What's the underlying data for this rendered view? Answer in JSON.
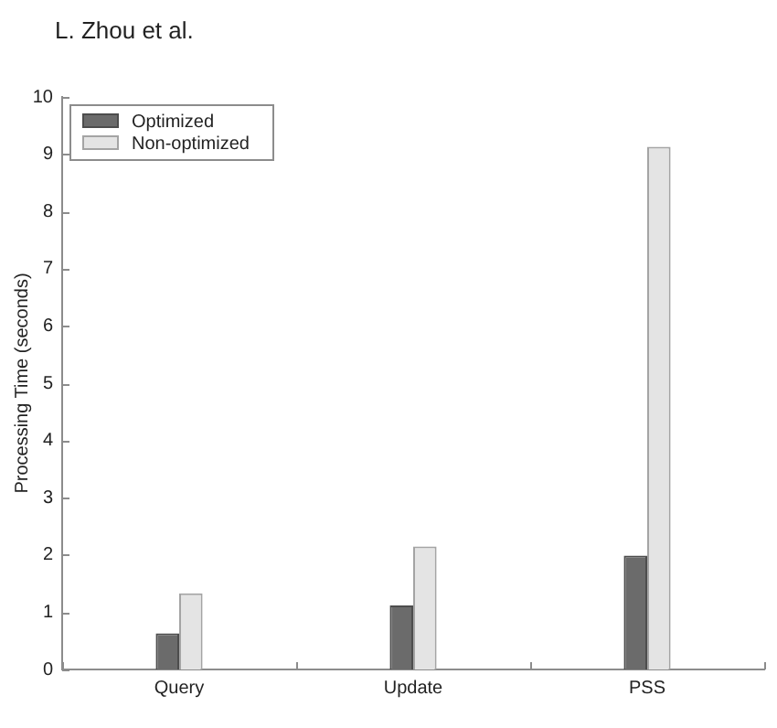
{
  "chart_data": {
    "type": "bar",
    "annotations": [
      "L. Zhou et al."
    ],
    "ylabel": "Processing Time (seconds)",
    "categories": [
      "Query",
      "Update",
      "PSS"
    ],
    "series": [
      {
        "name": "Optimized",
        "color": "#6b6b6b",
        "values": [
          0.63,
          1.12,
          1.99
        ]
      },
      {
        "name": "Non-optimized",
        "color": "#e4e4e4",
        "values": [
          1.33,
          2.15,
          9.13
        ]
      }
    ],
    "ylim": [
      0,
      10
    ],
    "yticks": [
      0,
      1,
      2,
      3,
      4,
      5,
      6,
      7,
      8,
      9,
      10
    ],
    "legend": "top left"
  }
}
